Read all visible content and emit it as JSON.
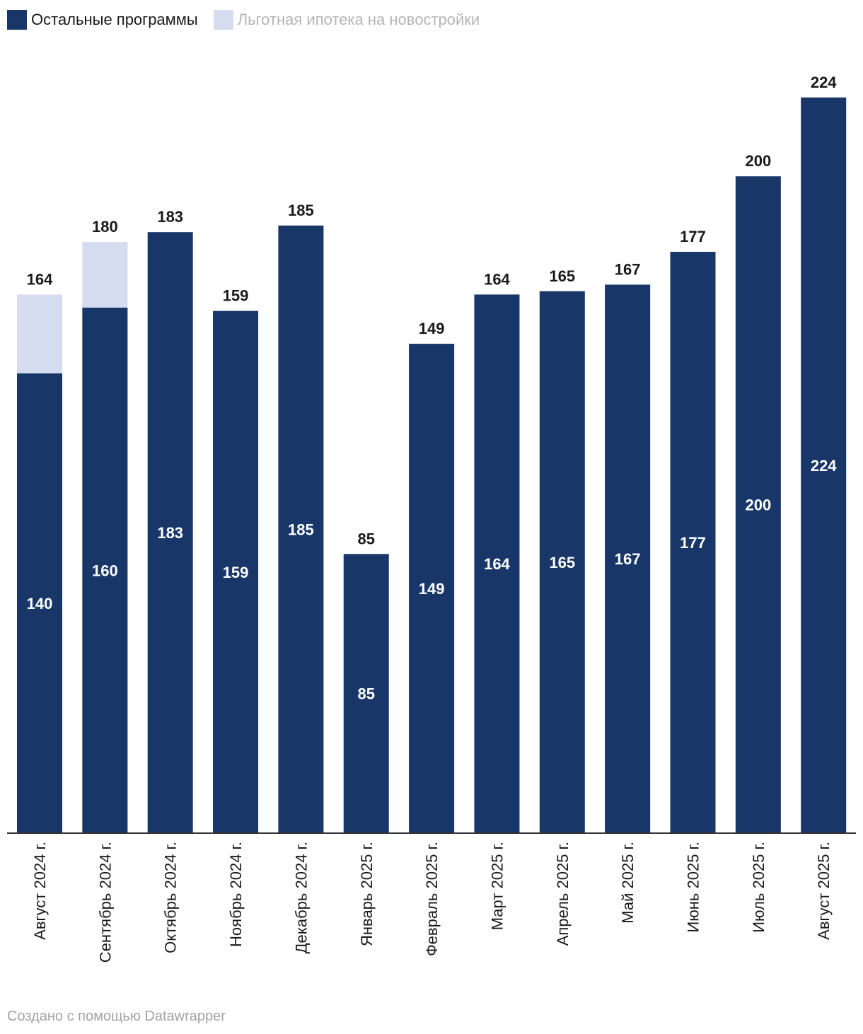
{
  "legend": [
    {
      "label": "Остальные программы",
      "color": "#183768",
      "text_color": "#1a1a1a"
    },
    {
      "label": "Льготная ипотека на новостройки",
      "color": "#d5dcef",
      "text_color": "#b5b5b5"
    }
  ],
  "footer": "Создано с помощью Datawrapper",
  "chart_data": {
    "type": "bar",
    "stacked": true,
    "categories": [
      "Август 2024 г.",
      "Сентябрь 2024 г.",
      "Октябрь 2024 г.",
      "Ноябрь 2024 г.",
      "Декабрь 2024 г.",
      "Январь 2025 г.",
      "Февраль 2025 г.",
      "Март 2025 г.",
      "Апрель 2025 г.",
      "Май 2025 г.",
      "Июнь 2025 г.",
      "Июль 2025 г.",
      "Август 2025 г."
    ],
    "series": [
      {
        "name": "Остальные программы",
        "color": "#183768",
        "values": [
          140,
          160,
          183,
          159,
          185,
          85,
          149,
          164,
          165,
          167,
          177,
          200,
          224
        ]
      },
      {
        "name": "Льготная ипотека на новостройки",
        "color": "#d5dcef",
        "values": [
          24,
          20,
          0,
          0,
          0,
          0,
          0,
          0,
          0,
          0,
          0,
          0,
          0
        ]
      }
    ],
    "totals": [
      164,
      180,
      183,
      159,
      185,
      85,
      149,
      164,
      165,
      167,
      177,
      200,
      224
    ],
    "ylim": [
      0,
      233
    ],
    "grid": false,
    "legend_position": "top-left"
  }
}
